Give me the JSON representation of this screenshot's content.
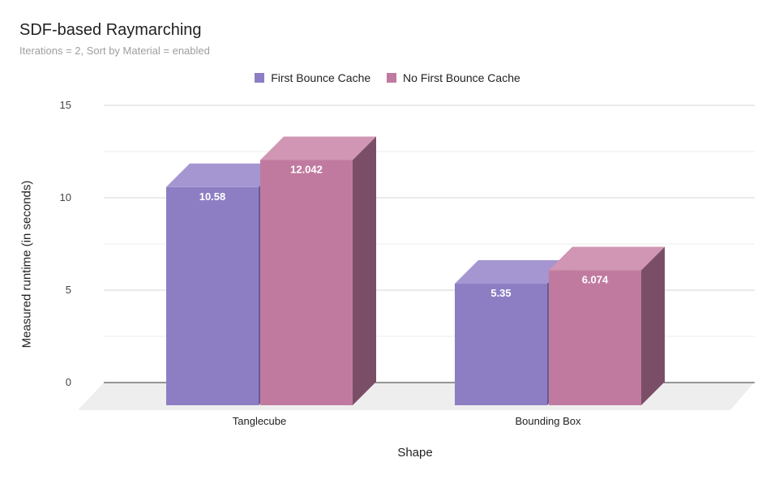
{
  "chart_data": {
    "type": "bar",
    "title": "SDF-based Raymarching",
    "subtitle": "Iterations = 2, Sort by Material = enabled",
    "xlabel": "Shape",
    "ylabel": "Measured runtime (in seconds)",
    "categories": [
      "Tanglecube",
      "Bounding Box"
    ],
    "series": [
      {
        "name": "First Bounce Cache",
        "values": [
          10.58,
          5.35
        ],
        "labels": [
          "10.58",
          "5.35"
        ]
      },
      {
        "name": "No First Bounce Cache",
        "values": [
          12.042,
          6.074
        ],
        "labels": [
          "12.042",
          "6.074"
        ]
      }
    ],
    "ylim": [
      0,
      15
    ],
    "yticks": [
      "0",
      "5",
      "10",
      "15"
    ],
    "grid": true,
    "legend_position": "top",
    "style_3d": true
  },
  "colors": {
    "series_front": [
      "#8d7ec3",
      "#c17a9f"
    ],
    "series_top": [
      "#a596d2",
      "#d096b3"
    ],
    "series_side": [
      "#685b94",
      "#7b4e67"
    ],
    "floor": "#eeeeee",
    "grid": "#dddddd",
    "axis": "#333333"
  }
}
